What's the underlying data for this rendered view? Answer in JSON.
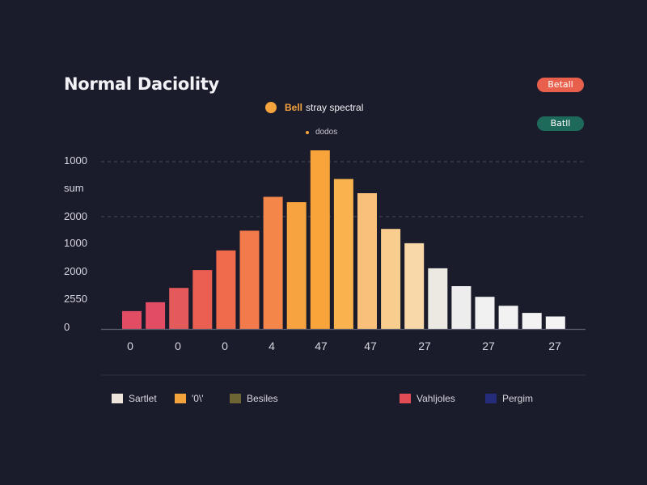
{
  "chart_data": {
    "type": "bar",
    "title": "Normal Daciolity",
    "series_label": {
      "bold": "Bell",
      "text": "stray spectral"
    },
    "series_sub": "dodos",
    "badges": [
      {
        "label": "Betall",
        "color": "#e8604c"
      },
      {
        "label": "Batll",
        "color": "#1e6a5a"
      }
    ],
    "y_tick_labels": [
      "1000",
      "sum",
      "2000",
      "1000",
      "2000",
      "2550",
      "0"
    ],
    "x_tick_labels": [
      "0",
      "0",
      "0",
      "4",
      "47",
      "47",
      "27",
      "27",
      "27"
    ],
    "grid": true,
    "values": [
      0.1,
      0.15,
      0.23,
      0.33,
      0.44,
      0.55,
      0.74,
      0.71,
      1.0,
      0.84,
      0.76,
      0.56,
      0.48,
      0.34,
      0.24,
      0.18,
      0.13,
      0.09,
      0.07
    ],
    "bar_colors": [
      "#e24d63",
      "#e24d63",
      "#e45a5c",
      "#ea5f51",
      "#f06b4c",
      "#f27a4b",
      "#f5864a",
      "#f7a33f",
      "#f9a43a",
      "#f9b24d",
      "#f8c07a",
      "#f8cd8d",
      "#f8d8a8",
      "#ece8e2",
      "#ededed",
      "#f1f1f1",
      "#f2f2f2",
      "#f3f3f3",
      "#f4f4f4"
    ],
    "legend": [
      {
        "label": "Sartlet",
        "color": "#ede4dc"
      },
      {
        "label": "'0\\'",
        "color": "#f3a33c"
      },
      {
        "label": "Besiles",
        "color": "#6e6535"
      },
      {
        "label": "Vahljoles",
        "color": "#e24d55"
      },
      {
        "label": "Pergim",
        "color": "#252c7a"
      }
    ]
  }
}
